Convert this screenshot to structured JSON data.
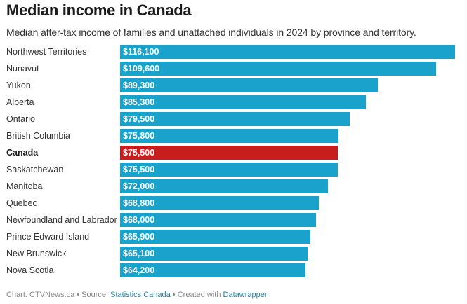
{
  "header": {
    "title": "Median income in Canada",
    "subtitle": "Median after-tax income of families and unattached individuals in 2024 by province and territory."
  },
  "footer": {
    "chart_prefix": "Chart: CTVNews.ca",
    "sep1": " • Source: ",
    "source_link": "Statistics Canada",
    "sep2": " • Created with ",
    "tool_link": "Datawrapper"
  },
  "colors": {
    "bar": "#1aa1cc",
    "highlight": "#c71e1d"
  },
  "chart_data": {
    "type": "bar",
    "orientation": "horizontal",
    "title": "Median income in Canada",
    "subtitle": "Median after-tax income of families and unattached individuals in 2024 by province and territory.",
    "xlabel": "",
    "ylabel": "",
    "xlim": [
      0,
      116100
    ],
    "grid": false,
    "highlight_category": "Canada",
    "categories": [
      "Northwest Territories",
      "Nunavut",
      "Yukon",
      "Alberta",
      "Ontario",
      "British Columbia",
      "Canada",
      "Saskatchewan",
      "Manitoba",
      "Quebec",
      "Newfoundland and Labrador",
      "Prince Edward Island",
      "New Brunswick",
      "Nova Scotia"
    ],
    "values": [
      116100,
      109600,
      89300,
      85300,
      79500,
      75800,
      75500,
      75500,
      72000,
      68800,
      68000,
      65900,
      65100,
      64200
    ],
    "value_labels": [
      "$116,100",
      "$109,600",
      "$89,300",
      "$85,300",
      "$79,500",
      "$75,800",
      "$75,500",
      "$75,500",
      "$72,000",
      "$68,800",
      "$68,000",
      "$65,900",
      "$65,100",
      "$64,200"
    ]
  }
}
